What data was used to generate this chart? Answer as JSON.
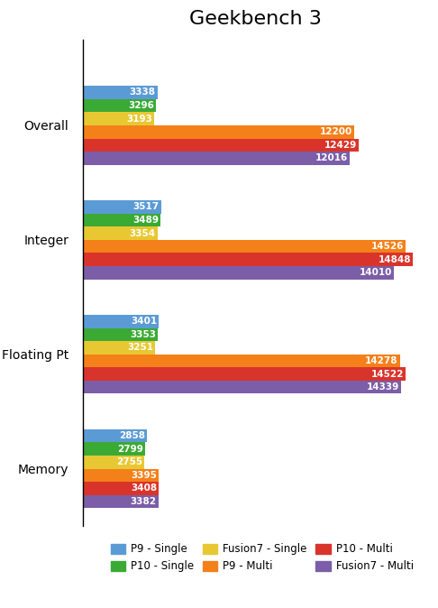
{
  "title": "Geekbench 3",
  "categories": [
    "Overall",
    "Integer",
    "Floating Pt",
    "Memory"
  ],
  "series": [
    {
      "label": "P9 - Single",
      "color": "#5b9bd5",
      "values": [
        3338,
        3517,
        3401,
        2858
      ]
    },
    {
      "label": "P10 - Single",
      "color": "#3aaa35",
      "values": [
        3296,
        3489,
        3353,
        2799
      ]
    },
    {
      "label": "Fusion7 - Single",
      "color": "#e8c832",
      "values": [
        3193,
        3354,
        3251,
        2755
      ]
    },
    {
      "label": "P9 - Multi",
      "color": "#f4801a",
      "values": [
        12200,
        14526,
        14278,
        3395
      ]
    },
    {
      "label": "P10 - Multi",
      "color": "#d9342b",
      "values": [
        12429,
        14848,
        14522,
        3408
      ]
    },
    {
      "label": "Fusion7 - Multi",
      "color": "#7b5ea7",
      "values": [
        12016,
        14010,
        14339,
        3382
      ]
    }
  ],
  "legend_order": [
    0,
    1,
    2,
    3,
    4,
    5
  ],
  "bar_height": 0.115,
  "bar_spacing": 0.0,
  "title_fontsize": 16,
  "tick_fontsize": 10,
  "value_fontsize": 7.5,
  "background_color": "#ffffff",
  "text_color": "#ffffff",
  "xlim": 15500
}
